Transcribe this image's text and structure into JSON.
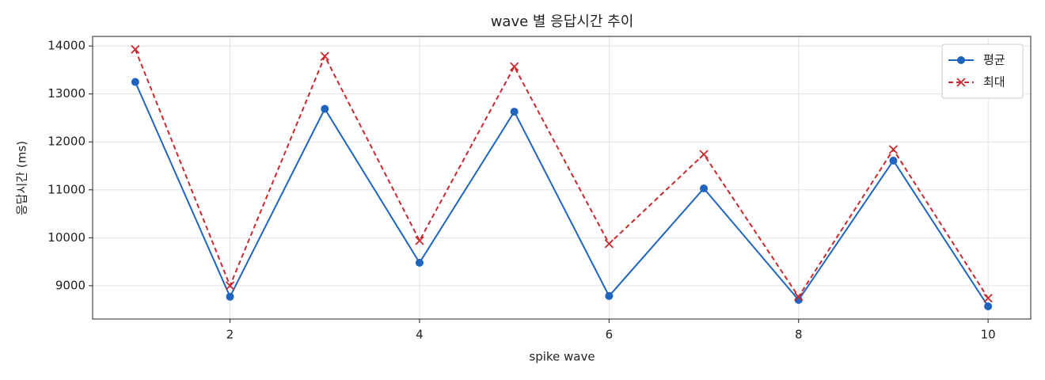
{
  "chart_data": {
    "type": "line",
    "title": "wave 별 응답시간 추이",
    "x_label": "spike wave",
    "y_label": "응답시간 (ms)",
    "x": [
      1,
      2,
      3,
      4,
      5,
      6,
      7,
      8,
      9,
      10
    ],
    "series": [
      {
        "name": "평균",
        "color": "#1f65c0",
        "marker": "o",
        "dash": false,
        "values": [
          13250,
          8770,
          12690,
          9480,
          12630,
          8785,
          11030,
          8703,
          11610,
          8570
        ]
      },
      {
        "name": "최대",
        "color": "#c8282e",
        "marker": "x",
        "dash": true,
        "values": [
          13930,
          9000,
          13785,
          9940,
          13570,
          9875,
          11740,
          8770,
          11840,
          8740
        ]
      }
    ],
    "xlim": [
      0.55,
      10.45
    ],
    "xticks": [
      2,
      4,
      6,
      8,
      10
    ],
    "ylim": [
      8305,
      14200
    ],
    "yticks": [
      9000,
      10000,
      11000,
      12000,
      13000,
      14000
    ],
    "grid": true,
    "legend": "upper right"
  }
}
